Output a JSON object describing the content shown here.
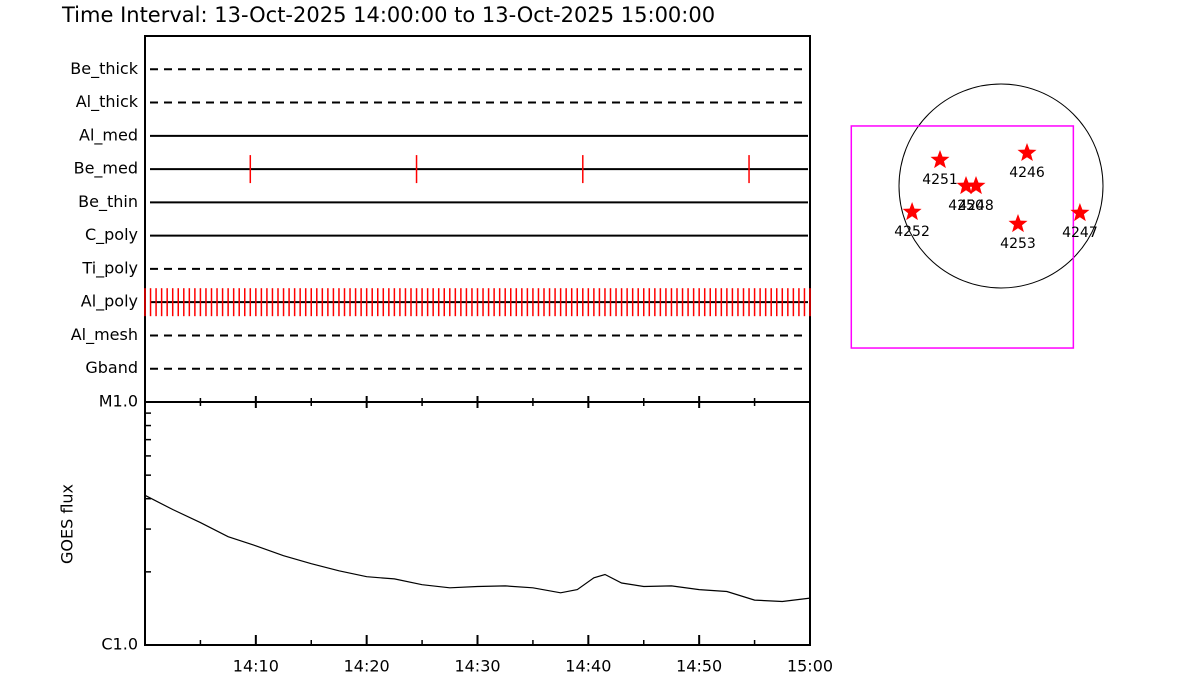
{
  "chart_data": [
    {
      "type": "timeline",
      "title": "Time Interval: 13-Oct-2025 14:00:00 to 13-Oct-2025 15:00:00",
      "categories": [
        "Be_thick",
        "Al_thick",
        "Al_med",
        "Be_med",
        "Be_thin",
        "C_poly",
        "Ti_poly",
        "Al_poly",
        "Al_mesh",
        "Gband"
      ],
      "line_styles": [
        "dashed",
        "dashed",
        "solid",
        "solid",
        "solid",
        "solid",
        "dashed",
        "solid",
        "dashed",
        "dashed"
      ],
      "events": [
        [],
        [],
        [],
        [
          9.5,
          24.5,
          39.5,
          54.5
        ],
        [],
        [],
        [],
        [
          0,
          0.5,
          1,
          1.5,
          2,
          2.5,
          3,
          3.5,
          4,
          4.5,
          5,
          5.5,
          6,
          6.5,
          7,
          7.5,
          8,
          8.5,
          9,
          9.5,
          10,
          10.5,
          11,
          11.5,
          12,
          12.5,
          13,
          13.5,
          14,
          14.5,
          15,
          15.5,
          16,
          16.5,
          17,
          17.5,
          18,
          18.5,
          19,
          19.5,
          20,
          20.5,
          21,
          21.5,
          22,
          22.5,
          23,
          23.5,
          24,
          24.5,
          25,
          25.5,
          26,
          26.5,
          27,
          27.5,
          28,
          28.5,
          29,
          29.5,
          30,
          30.5,
          31,
          31.5,
          32,
          32.5,
          33,
          33.5,
          34,
          34.5,
          35,
          35.5,
          36,
          36.5,
          37,
          37.5,
          38,
          38.5,
          39,
          39.5,
          40,
          40.5,
          41,
          41.5,
          42,
          42.5,
          43,
          43.5,
          44,
          44.5,
          45,
          45.5,
          46,
          46.5,
          47,
          47.5,
          48,
          48.5,
          49,
          49.5,
          50,
          50.5,
          51,
          51.5,
          52,
          52.5,
          53,
          53.5,
          54,
          54.5,
          55,
          55.5,
          56,
          56.5,
          57,
          57.5,
          58,
          58.5,
          59,
          59.5,
          60
        ],
        [],
        []
      ],
      "color": "#ff0000",
      "xlim": [
        0,
        60
      ]
    },
    {
      "type": "line",
      "ylabel": "GOES flux",
      "x": [
        0,
        2.5,
        5,
        7.5,
        10,
        12.5,
        15,
        17.5,
        20,
        22.5,
        25,
        27.5,
        30,
        32.5,
        35,
        37.5,
        39,
        40.5,
        41.5,
        43,
        45,
        47.5,
        50,
        52.5,
        55,
        57.5,
        60
      ],
      "values": [
        4.13e-06,
        3.61e-06,
        3.19e-06,
        2.79e-06,
        2.56e-06,
        2.33e-06,
        2.16e-06,
        2.02e-06,
        1.91e-06,
        1.87e-06,
        1.77e-06,
        1.72e-06,
        1.74e-06,
        1.75e-06,
        1.72e-06,
        1.64e-06,
        1.69e-06,
        1.89e-06,
        1.95e-06,
        1.8e-06,
        1.74e-06,
        1.75e-06,
        1.69e-06,
        1.66e-06,
        1.53e-06,
        1.51e-06,
        1.56e-06
      ],
      "color": "#000000",
      "xlim": [
        0,
        60
      ],
      "xticks": [
        {
          "value": 10,
          "label": "14:10"
        },
        {
          "value": 20,
          "label": "14:20"
        },
        {
          "value": 30,
          "label": "14:30"
        },
        {
          "value": 40,
          "label": "14:40"
        },
        {
          "value": 50,
          "label": "14:50"
        },
        {
          "value": 60,
          "label": "15:00"
        }
      ],
      "xminor": [
        5,
        15,
        25,
        35,
        45,
        55
      ],
      "log_y": true,
      "ylim": [
        1e-06,
        1e-05
      ],
      "yticks": [
        {
          "value": 1e-06,
          "label": "C1.0"
        },
        {
          "value": 1e-05,
          "label": "M1.0"
        }
      ],
      "yminor": [
        2e-06,
        3e-06,
        4e-06,
        5e-06,
        6e-06,
        7e-06,
        8e-06,
        9e-06
      ]
    },
    {
      "type": "map",
      "rsun": 960,
      "fov": {
        "center": [
          -364,
          -480
        ],
        "size": 2090
      },
      "fov_color": "#ff00ff",
      "marker_color": "#ff0000",
      "regions": [
        {
          "label": "4251",
          "x": -574,
          "y": 245
        },
        {
          "label": "4250",
          "x": -329,
          "y": 0
        },
        {
          "label": "4248",
          "x": -235,
          "y": 0
        },
        {
          "label": "4246",
          "x": 245,
          "y": 311
        },
        {
          "label": "4252",
          "x": -837,
          "y": -245
        },
        {
          "label": "4253",
          "x": 160,
          "y": -358
        },
        {
          "label": "4247",
          "x": 743,
          "y": -254
        }
      ]
    }
  ]
}
